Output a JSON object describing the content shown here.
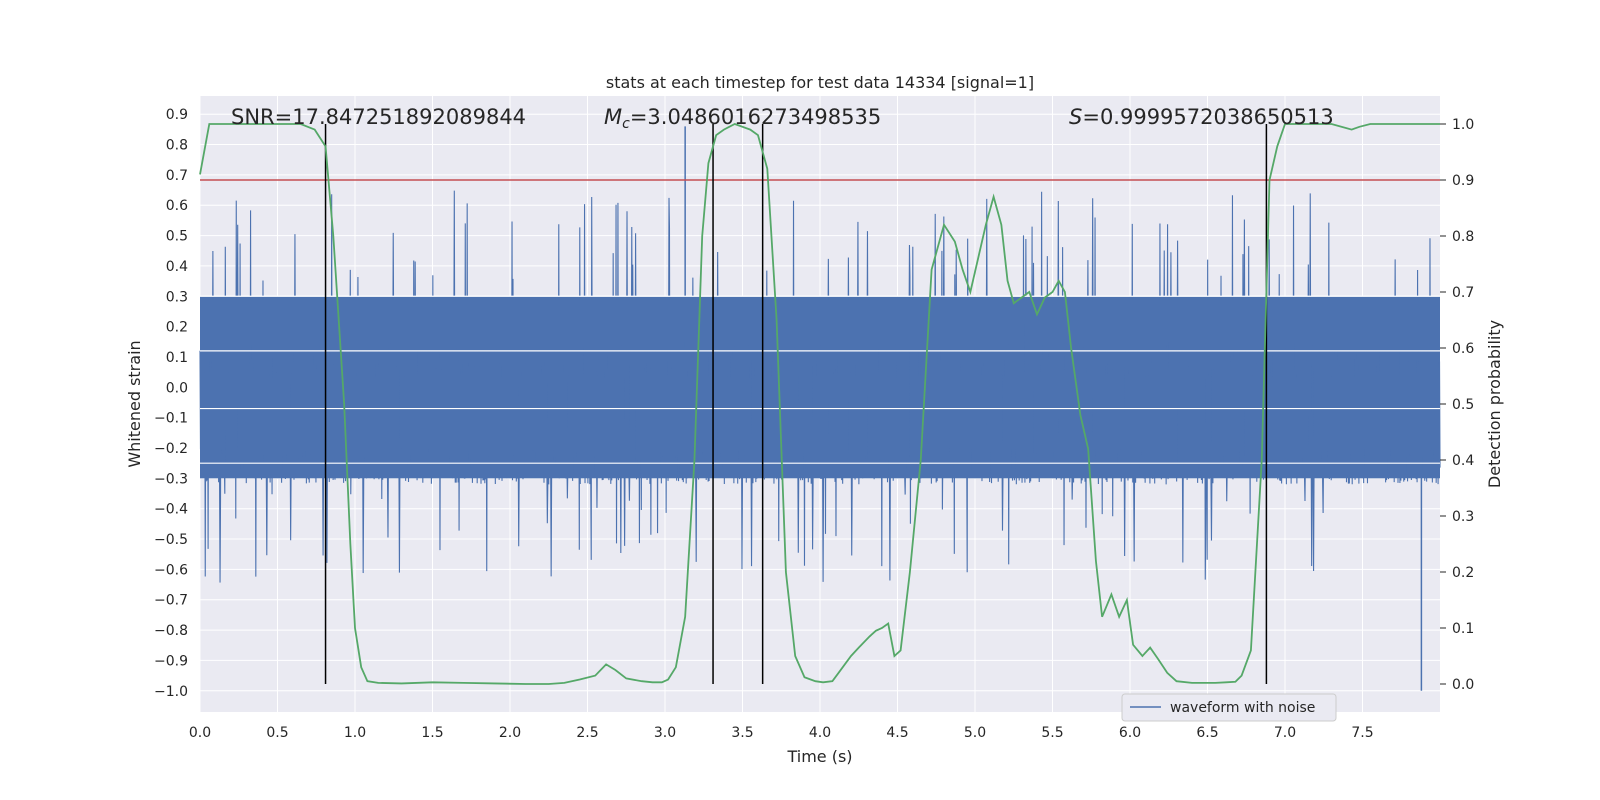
{
  "chart_data": {
    "type": "line",
    "title": "stats at each timestep for test data 14334 [signal=1]",
    "xlabel": "Time (s)",
    "ylabel_left": "Whitened strain",
    "ylabel_right": "Detection probability",
    "xlim": [
      0.0,
      8.0
    ],
    "ylim_left": [
      -1.07,
      0.96
    ],
    "ylim_right": [
      -0.05,
      1.05
    ],
    "x_ticks": [
      "0.0",
      "0.5",
      "1.0",
      "1.5",
      "2.0",
      "2.5",
      "3.0",
      "3.5",
      "4.0",
      "4.5",
      "5.0",
      "5.5",
      "6.0",
      "6.5",
      "7.0",
      "7.5"
    ],
    "y_left_ticks": [
      "0.9",
      "0.8",
      "0.7",
      "0.6",
      "0.5",
      "0.4",
      "0.3",
      "0.2",
      "0.1",
      "0.0",
      "−0.1",
      "−0.2",
      "−0.3",
      "−0.4",
      "−0.5",
      "−0.6",
      "−0.7",
      "−0.8",
      "−0.9",
      "−1.0"
    ],
    "y_right_ticks": [
      "1.0",
      "0.9",
      "0.8",
      "0.7",
      "0.6",
      "0.5",
      "0.4",
      "0.3",
      "0.2",
      "0.1",
      "0.0"
    ],
    "grid": true,
    "annotations": {
      "snr": "SNR=17.847251892089844",
      "mc_symbol": "M",
      "mc_sub": "c",
      "mc_value": "=3.0486016273498535",
      "s_symbol": "S",
      "s_value": "=0.9999572038650513"
    },
    "legend": {
      "label": "waveform with noise",
      "position": "bottom-right"
    },
    "threshold_right": 0.9,
    "vertical_lines_x": [
      0.81,
      3.31,
      3.63,
      6.88
    ],
    "waveform_noise": {
      "band_low_p2": -0.3,
      "band_high_p98": 0.3,
      "spike_extreme_low": -1.0,
      "spike_extreme_high": 0.86
    },
    "detection_probability": {
      "x": [
        0.0,
        0.06,
        0.15,
        0.3,
        0.5,
        0.65,
        0.74,
        0.81,
        0.86,
        0.93,
        0.97,
        1.0,
        1.04,
        1.08,
        1.15,
        1.3,
        1.5,
        1.7,
        1.9,
        2.1,
        2.25,
        2.35,
        2.45,
        2.55,
        2.62,
        2.68,
        2.75,
        2.85,
        2.92,
        2.98,
        3.02,
        3.07,
        3.13,
        3.19,
        3.24,
        3.28,
        3.33,
        3.38,
        3.45,
        3.55,
        3.6,
        3.66,
        3.72,
        3.78,
        3.84,
        3.9,
        3.97,
        4.02,
        4.08,
        4.12,
        4.2,
        4.25,
        4.32,
        4.36,
        4.4,
        4.44,
        4.48,
        4.52,
        4.58,
        4.65,
        4.72,
        4.8,
        4.87,
        4.92,
        4.97,
        5.02,
        5.07,
        5.12,
        5.17,
        5.21,
        5.25,
        5.3,
        5.35,
        5.4,
        5.45,
        5.5,
        5.54,
        5.58,
        5.62,
        5.68,
        5.73,
        5.78,
        5.82,
        5.88,
        5.93,
        5.98,
        6.02,
        6.08,
        6.13,
        6.18,
        6.24,
        6.3,
        6.4,
        6.55,
        6.62,
        6.68,
        6.72,
        6.78,
        6.85,
        6.9,
        6.95,
        7.0,
        7.1,
        7.3,
        7.43,
        7.48,
        7.55,
        7.65,
        7.75,
        7.88,
        8.0
      ],
      "y": [
        0.91,
        1.0,
        1.0,
        1.0,
        1.0,
        1.0,
        0.99,
        0.96,
        0.8,
        0.5,
        0.25,
        0.1,
        0.03,
        0.005,
        0.002,
        0.001,
        0.003,
        0.002,
        0.001,
        0.0,
        0.0,
        0.002,
        0.008,
        0.015,
        0.035,
        0.025,
        0.01,
        0.005,
        0.003,
        0.003,
        0.008,
        0.03,
        0.12,
        0.4,
        0.8,
        0.93,
        0.98,
        0.99,
        1.0,
        0.99,
        0.98,
        0.92,
        0.65,
        0.2,
        0.05,
        0.012,
        0.005,
        0.003,
        0.005,
        0.02,
        0.05,
        0.065,
        0.085,
        0.095,
        0.1,
        0.108,
        0.05,
        0.06,
        0.2,
        0.4,
        0.74,
        0.82,
        0.79,
        0.74,
        0.7,
        0.76,
        0.82,
        0.87,
        0.82,
        0.72,
        0.68,
        0.69,
        0.7,
        0.66,
        0.69,
        0.7,
        0.72,
        0.7,
        0.6,
        0.48,
        0.42,
        0.22,
        0.12,
        0.16,
        0.12,
        0.15,
        0.07,
        0.05,
        0.065,
        0.045,
        0.02,
        0.005,
        0.002,
        0.002,
        0.003,
        0.004,
        0.015,
        0.06,
        0.4,
        0.9,
        0.96,
        1.0,
        1.0,
        1.0,
        0.99,
        0.995,
        1.0,
        1.0,
        1.0,
        1.0,
        1.0
      ]
    }
  }
}
